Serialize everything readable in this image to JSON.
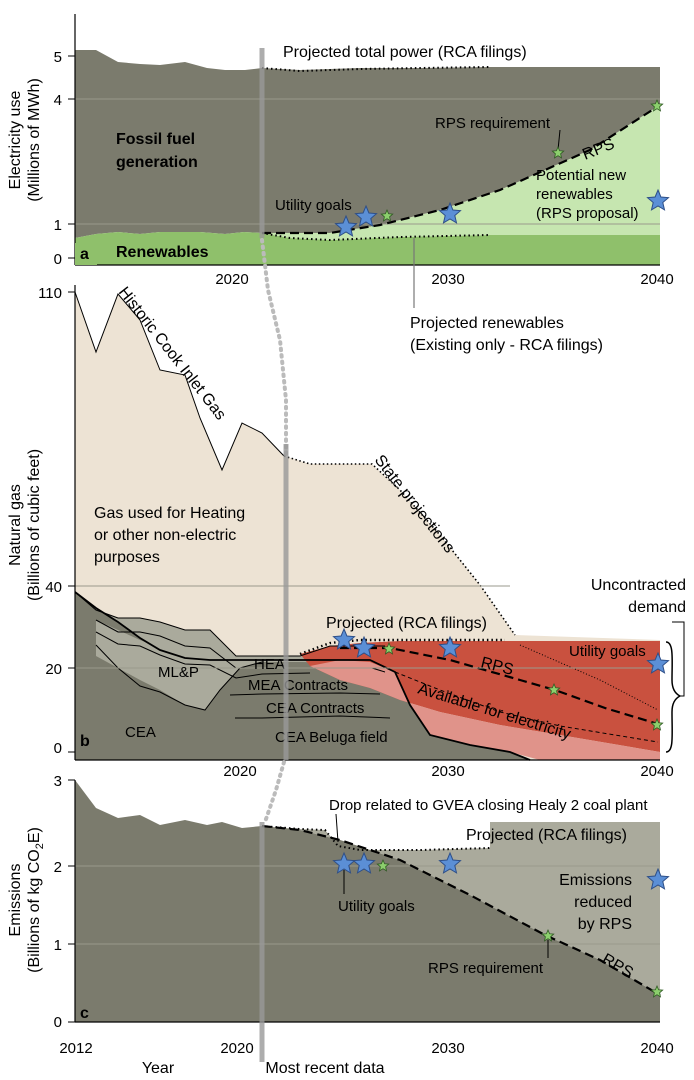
{
  "chart_data": [
    {
      "panel": "a",
      "type": "area",
      "ylabel": [
        "Electricity use",
        "(Millions of MWh)"
      ],
      "yticks": [
        "0",
        "1",
        "4",
        "5"
      ],
      "xticks": [
        "2020",
        "2030",
        "2040"
      ],
      "x_domain": [
        2012,
        2040
      ],
      "ylim": [
        0,
        5
      ],
      "historic_total": {
        "x": [
          2012,
          2013,
          2014,
          2015,
          2016,
          2017,
          2018,
          2019,
          2020,
          2021
        ],
        "y": [
          4.95,
          4.95,
          4.85,
          4.75,
          4.72,
          4.75,
          4.6,
          4.55,
          4.55,
          4.6
        ]
      },
      "historic_renewables": {
        "x": [
          2012,
          2013,
          2014,
          2015,
          2016,
          2017,
          2018,
          2019,
          2020,
          2021
        ],
        "y": [
          0.2,
          0.28,
          0.3,
          0.28,
          0.3,
          0.32,
          0.3,
          0.33,
          0.32,
          0.3
        ]
      },
      "projected_total": {
        "name": "Projected total power (RCA filings)",
        "x": [
          2021,
          2023,
          2025,
          2027,
          2030,
          2032
        ],
        "y": [
          4.6,
          4.55,
          4.58,
          4.6,
          4.65,
          4.65
        ]
      },
      "projected_renewables": {
        "name": "Projected renewables (Existing only - RCA filings)",
        "x": [
          2021,
          2023,
          2025,
          2027,
          2030,
          2032
        ],
        "y": [
          0.3,
          0.2,
          0.18,
          0.2,
          0.23,
          0.23
        ]
      },
      "rps_requirement": {
        "name": "RPS",
        "x": [
          2021,
          2025,
          2030,
          2035,
          2040
        ],
        "y": [
          0.3,
          0.85,
          1.9,
          2.85,
          3.85
        ]
      },
      "utility_goal_points": {
        "x": [
          2025,
          2026,
          2030,
          2040
        ],
        "y": [
          0.95,
          1.1,
          1.15,
          1.45
        ]
      },
      "rps_points": {
        "x": [
          2027,
          2035,
          2040
        ],
        "y": [
          1.15,
          2.85,
          3.85
        ]
      },
      "labels": {
        "fossil": [
          "Fossil fuel",
          "generation"
        ],
        "renewables": "Renewables",
        "projected_total": "Projected total power (RCA filings)",
        "rps_requirement": "RPS requirement",
        "rps": "RPS",
        "utility_goals": "Utility goals",
        "potential": [
          "Potential new",
          "renewables",
          "(RPS proposal)"
        ],
        "projected_renewables": [
          "Projected renewables",
          "(Existing only - RCA filings)"
        ]
      },
      "colors": {
        "fossil": "#7b7b6d",
        "renewables": "#8fc06b",
        "potential": "#c6e6b0",
        "star_big": "#5b8fd6",
        "star_small": "#8ccf6d"
      }
    },
    {
      "panel": "b",
      "type": "area",
      "ylabel": [
        "Natural gas",
        "(Billions of cubic feet)"
      ],
      "yticks": [
        "0",
        "20",
        "40",
        "110"
      ],
      "xticks": [
        "2020",
        "2030",
        "2040"
      ],
      "x_domain": [
        2012,
        2040
      ],
      "ylim": [
        0,
        110
      ],
      "historic_cook_inlet_gas": {
        "name": "Historic Cook Inlet Gas",
        "x": [
          2012,
          2013,
          2014,
          2015,
          2016,
          2017,
          2018,
          2019,
          2020,
          2021,
          2022
        ],
        "y": [
          110,
          95,
          110,
          100,
          90,
          92,
          83,
          72,
          80,
          75,
          75
        ]
      },
      "state_projections": {
        "name": "State projections",
        "x": [
          2022,
          2023,
          2025,
          2027,
          2029,
          2031,
          2033,
          2035,
          2040
        ],
        "y": [
          75,
          72,
          72,
          68,
          58,
          45,
          28,
          27,
          27
        ]
      },
      "projected_rca": {
        "name": "Projected (RCA filings)",
        "x": [
          2022,
          2023,
          2025,
          2027,
          2030,
          2032
        ],
        "y": [
          24,
          26,
          27,
          27,
          27,
          27
        ]
      },
      "stacked_components": [
        "CEA",
        "ML&P",
        "HEA",
        "MEA Contracts",
        "CEA Contracts",
        "CEA Beluga field"
      ],
      "uncontracted_demand": "Uncontracted demand",
      "utility_goal_points": {
        "x": [
          2025,
          2026,
          2030,
          2040
        ],
        "y": [
          27,
          25,
          25,
          21
        ]
      },
      "rps_points": {
        "x": [
          2027,
          2035,
          2040
        ],
        "y": [
          25,
          14,
          6
        ]
      },
      "labels": {
        "historic": "Historic Cook Inlet Gas",
        "state": "State projections",
        "heating": [
          "Gas used for Heating",
          "or other non-electric",
          "purposes"
        ],
        "projected": "Projected (RCA filings)",
        "rps": "RPS",
        "utility_goals": "Utility goals",
        "available": "Available for electricity",
        "uncontracted": [
          "Uncontracted",
          "demand"
        ],
        "cea": "CEA",
        "mlp": "ML&P",
        "hea": "HEA",
        "mea": "MEA Contracts",
        "cea_contracts": "CEA Contracts",
        "beluga": "CEA Beluga field"
      },
      "colors": {
        "heating": "#ede3d4",
        "gas_stack": "#7b7b6d",
        "contracts": "#aaaa9c",
        "available_dark": "#c9513f",
        "available_light": "#e0938a"
      }
    },
    {
      "panel": "c",
      "type": "area",
      "ylabel": [
        "Emissions",
        "(Billions of kg CO2E)"
      ],
      "ylabel_parts": [
        "(Billions of kg CO",
        "2",
        "E)"
      ],
      "yticks": [
        "0",
        "1",
        "2",
        "3"
      ],
      "xticks": [
        "2012",
        "2020",
        "2030",
        "2040"
      ],
      "x_domain": [
        2012,
        2040
      ],
      "ylim": [
        0,
        3
      ],
      "historic": {
        "x": [
          2012,
          2013,
          2014,
          2015,
          2016,
          2017,
          2018,
          2019,
          2020,
          2021
        ],
        "y": [
          3.0,
          2.65,
          2.5,
          2.55,
          2.4,
          2.45,
          2.4,
          2.5,
          2.38,
          2.42
        ]
      },
      "projected_rca": {
        "name": "Projected (RCA filings)",
        "x": [
          2021,
          2024,
          2025,
          2026,
          2028,
          2032
        ],
        "y": [
          2.42,
          2.4,
          2.3,
          2.15,
          2.15,
          2.15
        ]
      },
      "rps": {
        "name": "RPS",
        "x": [
          2021,
          2027,
          2035,
          2040
        ],
        "y": [
          2.42,
          1.92,
          1.1,
          0.45
        ]
      },
      "utility_goal_points": {
        "x": [
          2025,
          2026,
          2030,
          2040
        ],
        "y": [
          1.97,
          1.97,
          1.97,
          1.8
        ]
      },
      "rps_points": {
        "x": [
          2027,
          2035,
          2040
        ],
        "y": [
          1.92,
          1.1,
          0.45
        ]
      },
      "labels": {
        "drop": "Drop related to GVEA closing Healy 2 coal plant",
        "projected": "Projected (RCA filings)",
        "utility_goals": "Utility goals",
        "reduced": [
          "Emissions",
          "reduced",
          "by RPS"
        ],
        "rps_requirement": "RPS requirement",
        "rps": "RPS"
      }
    }
  ],
  "panel_letters": [
    "a",
    "b",
    "c"
  ],
  "xlabel": "Year",
  "most_recent": "Most recent data"
}
